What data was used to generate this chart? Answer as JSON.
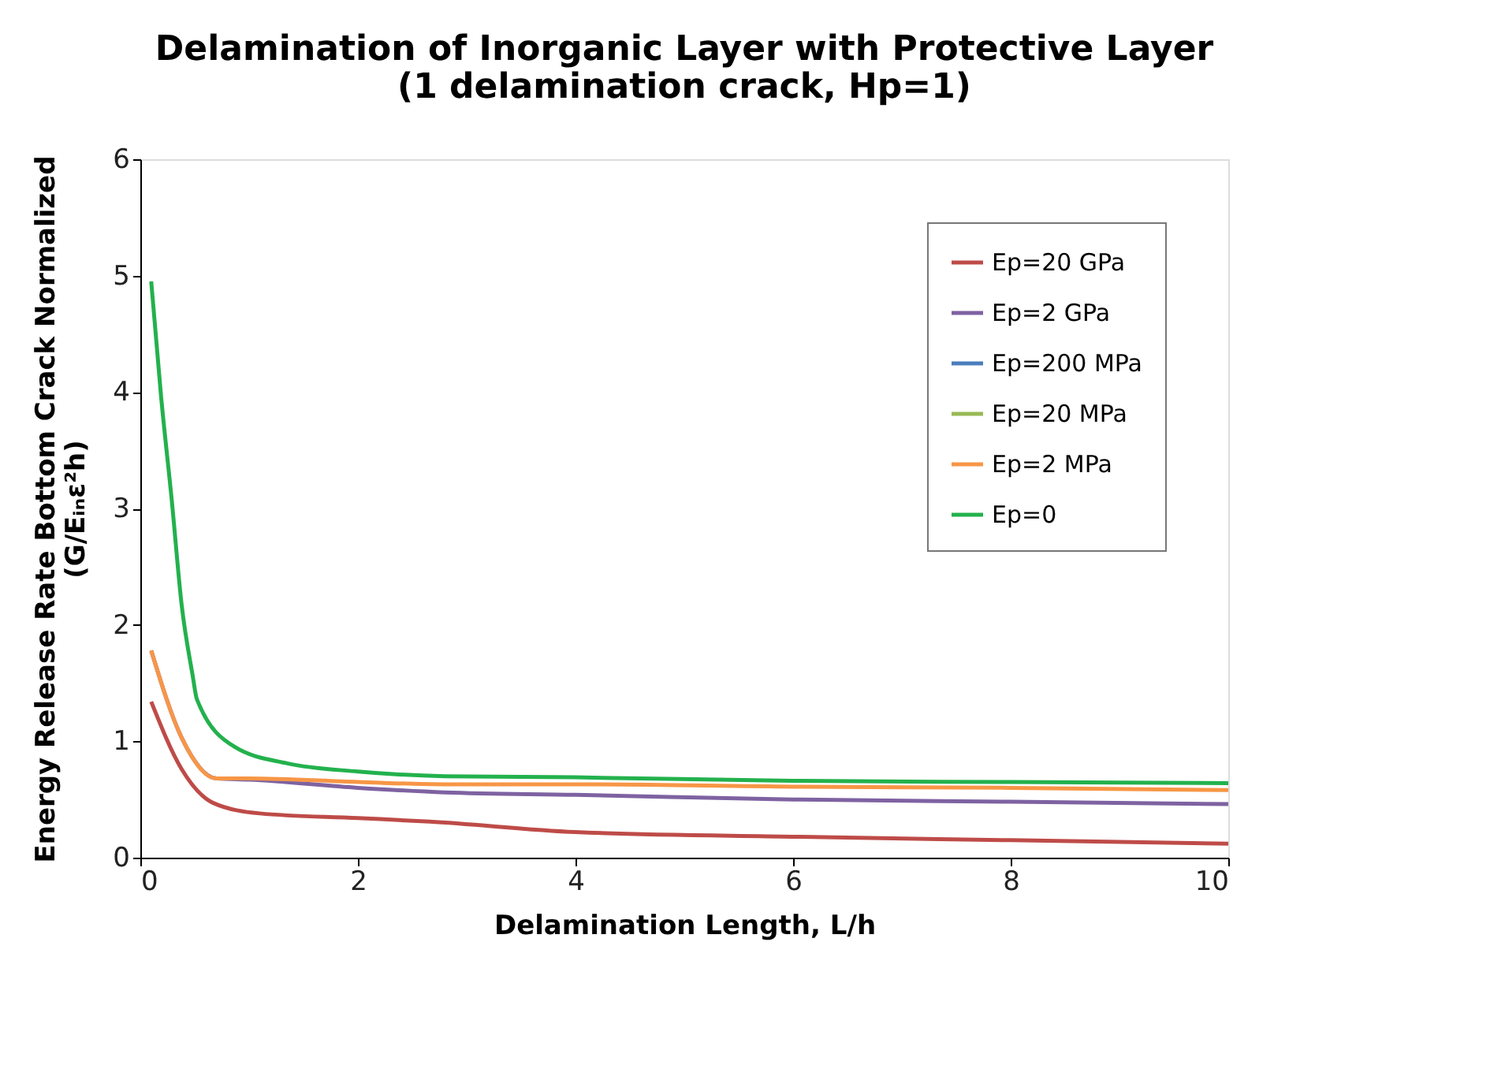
{
  "chart_data": {
    "type": "line",
    "title": "Delamination of Inorganic Layer with Protective Layer\n(1 delamination crack, Hp=1)",
    "xlabel": "Delamination Length, L/h",
    "ylabel": "Energy Release Rate Bottom Crack Normalized\n(G/Eᵢₙε²h)",
    "xlim": [
      0,
      10
    ],
    "ylim": [
      0,
      6
    ],
    "xticks": [
      0,
      2,
      4,
      6,
      8,
      10
    ],
    "yticks": [
      0,
      1,
      2,
      3,
      4,
      5,
      6
    ],
    "grid": false,
    "legend": "top right",
    "marker": "none",
    "line_style": "solid",
    "series": [
      {
        "name": "Ep=20 GPa",
        "color": "#be4b48",
        "x": [
          0.1,
          0.38,
          0.67,
          1.1,
          2,
          2.66,
          4,
          6,
          8,
          10
        ],
        "values": [
          1.34,
          0.76,
          0.47,
          0.38,
          0.34,
          0.31,
          0.22,
          0.18,
          0.15,
          0.12
        ]
      },
      {
        "name": "Ep=2 GPa",
        "color": "#7e62a1",
        "x": [
          0.1,
          0.38,
          0.7,
          1,
          2,
          2.8,
          4,
          6,
          8,
          10
        ],
        "values": [
          1.78,
          1.03,
          0.68,
          0.67,
          0.6,
          0.56,
          0.54,
          0.5,
          0.48,
          0.46
        ]
      },
      {
        "name": "Ep=200 MPa",
        "color": "#4a7ebb"
      },
      {
        "name": "Ep=20 MPa",
        "color": "#98b954"
      },
      {
        "name": "Ep=2 MPa",
        "color": "#f79646",
        "x": [
          0.1,
          0.38,
          0.7,
          1,
          2,
          2.8,
          4,
          6,
          8,
          10
        ],
        "values": [
          1.78,
          1.03,
          0.68,
          0.68,
          0.65,
          0.63,
          0.63,
          0.61,
          0.6,
          0.58
        ]
      },
      {
        "name": "Ep=0",
        "color": "#23b14d",
        "x": [
          0.1,
          0.19,
          0.29,
          0.38,
          0.48,
          0.52,
          0.87,
          1.35,
          2,
          2.8,
          4,
          6,
          8,
          10
        ],
        "values": [
          4.95,
          3.97,
          3.06,
          2.17,
          1.57,
          1.36,
          0.95,
          0.81,
          0.74,
          0.7,
          0.69,
          0.66,
          0.65,
          0.64
        ]
      }
    ]
  }
}
